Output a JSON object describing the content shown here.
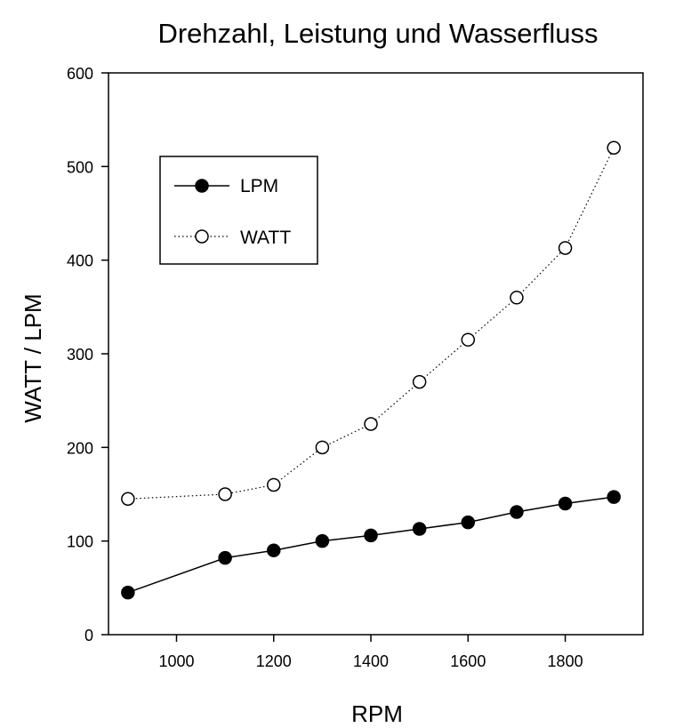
{
  "chart_data": {
    "type": "line",
    "title": "Drehzahl, Leistung und Wasserfluss",
    "xlabel": "RPM",
    "ylabel": "WATT / LPM",
    "xlim": [
      860,
      1960
    ],
    "ylim": [
      0,
      600
    ],
    "xticks": [
      1000,
      1200,
      1400,
      1600,
      1800
    ],
    "yticks": [
      0,
      100,
      200,
      300,
      400,
      500,
      600
    ],
    "grid": false,
    "legend_position": "top-left",
    "x": [
      900,
      1100,
      1200,
      1300,
      1400,
      1500,
      1600,
      1700,
      1800,
      1900
    ],
    "series": [
      {
        "name": "LPM",
        "values": [
          45,
          82,
          90,
          100,
          106,
          113,
          120,
          131,
          140,
          147
        ],
        "marker": "filled-circle",
        "line_style": "solid",
        "color": "#000000"
      },
      {
        "name": "WATT",
        "values": [
          145,
          150,
          160,
          200,
          225,
          270,
          315,
          360,
          413,
          520
        ],
        "marker": "open-circle",
        "line_style": "dotted",
        "color": "#000000"
      }
    ]
  }
}
